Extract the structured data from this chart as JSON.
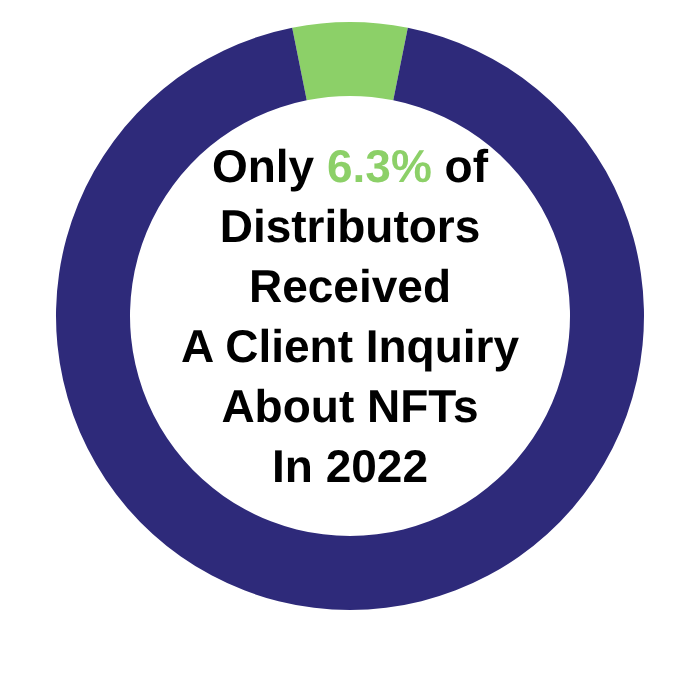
{
  "chart_data": {
    "type": "donut",
    "title": "Only 6.3% of\nDistributors\nReceived\nA Client Inquiry\nAbout NFTs\nIn 2022",
    "categories": [
      null,
      null
    ],
    "values": [
      6.3,
      93.7
    ],
    "colors": [
      "#8cd068",
      "#2e2a7a"
    ]
  }
}
